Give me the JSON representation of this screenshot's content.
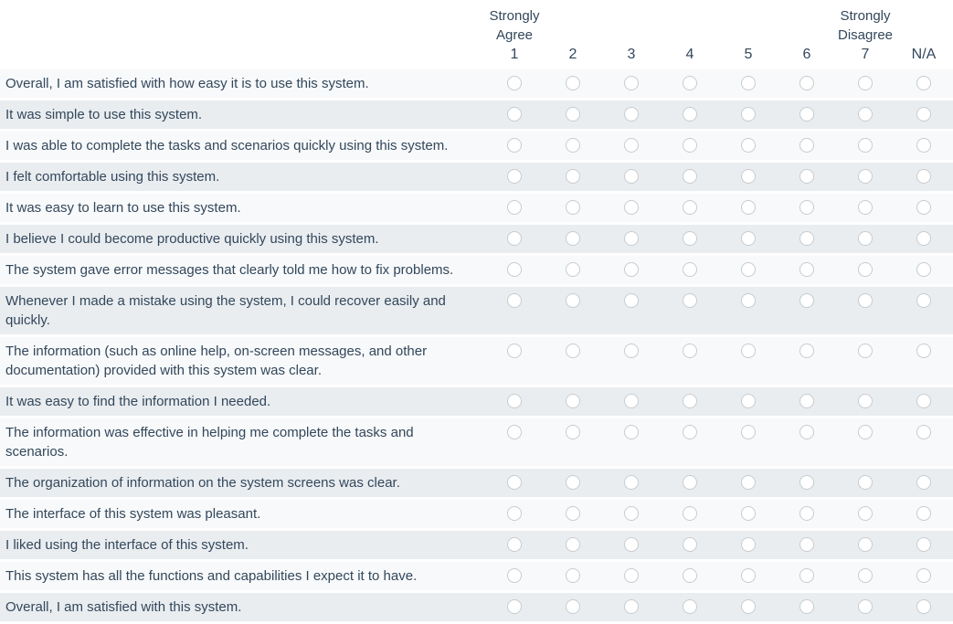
{
  "colors": {
    "text": "#33475b",
    "row-odd": "#f7f9fa",
    "row-even": "#e9edf0",
    "radio-border": "#c7ccd0",
    "radio-fill": "#ffffff",
    "page-bg": "#ffffff"
  },
  "scale": {
    "agree_caption": "Strongly\nAgree",
    "disagree_caption": "Strongly\nDisagree",
    "columns": [
      {
        "value": "1",
        "caption": "Strongly\nAgree"
      },
      {
        "value": "2",
        "caption": ""
      },
      {
        "value": "3",
        "caption": ""
      },
      {
        "value": "4",
        "caption": ""
      },
      {
        "value": "5",
        "caption": ""
      },
      {
        "value": "6",
        "caption": ""
      },
      {
        "value": "7",
        "caption": "Strongly\nDisagree"
      },
      {
        "value": "N/A",
        "caption": ""
      }
    ]
  },
  "questions": [
    "Overall, I am satisfied with how easy it is to use this system.",
    "It was simple to use this system.",
    "I was able to complete the tasks and scenarios quickly using this system.",
    "I felt comfortable using this system.",
    "It was easy to learn to use this system.",
    "I believe I could become productive quickly using this system.",
    "The system gave error messages that clearly told me how to fix problems.",
    "Whenever I made a mistake using the system, I could recover easily and quickly.",
    "The information (such as online help, on-screen messages, and other documentation) provided with this system was clear.",
    "It was easy to find the information I needed.",
    "The information was effective in helping me complete the tasks and scenarios.",
    "The organization of information on the system screens was clear.",
    "The interface of this system was pleasant.",
    "I liked using the interface of this system.",
    "This system has all the functions and capabilities I expect it to have.",
    "Overall, I am satisfied with this system."
  ],
  "selections": []
}
